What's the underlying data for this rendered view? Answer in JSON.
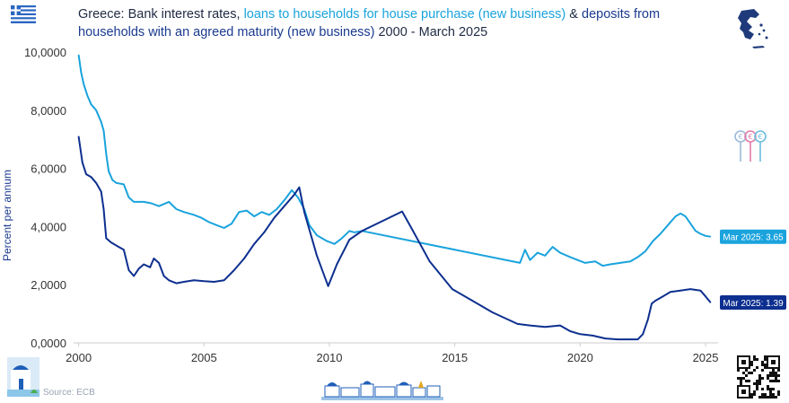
{
  "header": {
    "title_prefix": "Greece: Bank interest rates, ",
    "title_loans": "loans to households for house purchase (new business)",
    "title_amp": " & ",
    "title_deposits": "deposits from households with an agreed maturity (new business)",
    "title_suffix": " 2000 - March 2025"
  },
  "footer": {
    "source": "Source: ECB"
  },
  "icons": {
    "flag": "greek-flag-icon",
    "map": "greece-map-icon",
    "keys": "euro-keys-icon",
    "qr": "qr-code-icon",
    "santorini": "santorini-church-icon",
    "skyline": "cyclades-village-icon"
  },
  "colors": {
    "loans": "#1aa3dd",
    "deposits": "#0d2f8f",
    "axis_text": "#333333",
    "ylabel": "#1a3a8f",
    "grid": "#e6e6e6"
  },
  "chart_data": {
    "type": "line",
    "ylabel": "Percent per annum",
    "xlabel": "",
    "ylim": [
      0,
      10
    ],
    "xlim": [
      1999.8,
      2025.5
    ],
    "x_ticks": [
      2000,
      2005,
      2010,
      2015,
      2020,
      2025
    ],
    "x_tick_labels": [
      "2000",
      "2005",
      "2010",
      "2015",
      "2020",
      "2025"
    ],
    "y_ticks": [
      0,
      2,
      4,
      6,
      8,
      10
    ],
    "y_tick_labels": [
      "0,0000",
      "2,0000",
      "4,0000",
      "6,0000",
      "8,0000",
      "10,0000"
    ],
    "grid": "none",
    "series": [
      {
        "name": "loans to households for house purchase (new business)",
        "end_label": "Mar 2025: 3.65",
        "points": [
          [
            2000.0,
            9.9
          ],
          [
            2000.1,
            9.3
          ],
          [
            2000.2,
            8.9
          ],
          [
            2000.35,
            8.5
          ],
          [
            2000.5,
            8.2
          ],
          [
            2000.7,
            8.0
          ],
          [
            2000.9,
            7.6
          ],
          [
            2001.0,
            7.3
          ],
          [
            2001.1,
            6.5
          ],
          [
            2001.2,
            5.9
          ],
          [
            2001.35,
            5.6
          ],
          [
            2001.5,
            5.5
          ],
          [
            2001.8,
            5.45
          ],
          [
            2002.0,
            5.0
          ],
          [
            2002.2,
            4.85
          ],
          [
            2002.6,
            4.85
          ],
          [
            2002.9,
            4.8
          ],
          [
            2003.2,
            4.7
          ],
          [
            2003.6,
            4.85
          ],
          [
            2003.9,
            4.6
          ],
          [
            2004.2,
            4.5
          ],
          [
            2004.6,
            4.4
          ],
          [
            2004.9,
            4.3
          ],
          [
            2005.2,
            4.15
          ],
          [
            2005.5,
            4.05
          ],
          [
            2005.8,
            3.95
          ],
          [
            2006.1,
            4.1
          ],
          [
            2006.4,
            4.5
          ],
          [
            2006.7,
            4.55
          ],
          [
            2007.0,
            4.35
          ],
          [
            2007.3,
            4.5
          ],
          [
            2007.6,
            4.4
          ],
          [
            2007.9,
            4.6
          ],
          [
            2008.2,
            4.9
          ],
          [
            2008.5,
            5.25
          ],
          [
            2008.75,
            5.0
          ],
          [
            2009.0,
            4.6
          ],
          [
            2009.2,
            4.05
          ],
          [
            2009.5,
            3.7
          ],
          [
            2009.9,
            3.5
          ],
          [
            2010.2,
            3.4
          ],
          [
            2010.5,
            3.6
          ],
          [
            2010.8,
            3.85
          ],
          [
            2011.0,
            3.8
          ],
          [
            2011.3,
            3.85
          ],
          [
            2017.6,
            2.75
          ],
          [
            2017.8,
            3.2
          ],
          [
            2018.0,
            2.85
          ],
          [
            2018.3,
            3.1
          ],
          [
            2018.6,
            3.0
          ],
          [
            2018.9,
            3.3
          ],
          [
            2019.2,
            3.1
          ],
          [
            2019.6,
            2.95
          ],
          [
            2019.9,
            2.85
          ],
          [
            2020.2,
            2.75
          ],
          [
            2020.6,
            2.8
          ],
          [
            2020.9,
            2.65
          ],
          [
            2021.2,
            2.7
          ],
          [
            2021.6,
            2.75
          ],
          [
            2022.0,
            2.8
          ],
          [
            2022.3,
            2.95
          ],
          [
            2022.6,
            3.15
          ],
          [
            2022.9,
            3.5
          ],
          [
            2023.2,
            3.75
          ],
          [
            2023.5,
            4.05
          ],
          [
            2023.8,
            4.35
          ],
          [
            2024.0,
            4.45
          ],
          [
            2024.2,
            4.35
          ],
          [
            2024.4,
            4.1
          ],
          [
            2024.6,
            3.85
          ],
          [
            2024.8,
            3.75
          ],
          [
            2025.0,
            3.68
          ],
          [
            2025.2,
            3.65
          ]
        ]
      },
      {
        "name": "deposits from households with an agreed maturity (new business)",
        "end_label": "Mar 2025: 1.39",
        "points": [
          [
            2000.0,
            7.1
          ],
          [
            2000.15,
            6.2
          ],
          [
            2000.3,
            5.8
          ],
          [
            2000.5,
            5.7
          ],
          [
            2000.7,
            5.5
          ],
          [
            2000.9,
            5.2
          ],
          [
            2001.0,
            4.6
          ],
          [
            2001.1,
            3.6
          ],
          [
            2001.3,
            3.45
          ],
          [
            2001.6,
            3.3
          ],
          [
            2001.8,
            3.2
          ],
          [
            2002.0,
            2.5
          ],
          [
            2002.2,
            2.3
          ],
          [
            2002.4,
            2.55
          ],
          [
            2002.6,
            2.7
          ],
          [
            2002.85,
            2.6
          ],
          [
            2003.0,
            2.9
          ],
          [
            2003.2,
            2.75
          ],
          [
            2003.4,
            2.3
          ],
          [
            2003.6,
            2.15
          ],
          [
            2003.9,
            2.05
          ],
          [
            2004.2,
            2.1
          ],
          [
            2004.6,
            2.15
          ],
          [
            2005.0,
            2.12
          ],
          [
            2005.4,
            2.1
          ],
          [
            2005.8,
            2.15
          ],
          [
            2006.2,
            2.5
          ],
          [
            2006.6,
            2.9
          ],
          [
            2007.0,
            3.4
          ],
          [
            2007.4,
            3.8
          ],
          [
            2007.8,
            4.3
          ],
          [
            2008.2,
            4.7
          ],
          [
            2008.6,
            5.1
          ],
          [
            2008.8,
            5.35
          ],
          [
            2009.0,
            4.5
          ],
          [
            2009.5,
            3.0
          ],
          [
            2009.95,
            1.95
          ],
          [
            2010.3,
            2.7
          ],
          [
            2010.8,
            3.55
          ],
          [
            2011.3,
            3.85
          ],
          [
            2012.9,
            4.52
          ],
          [
            2013.3,
            3.9
          ],
          [
            2014.0,
            2.8
          ],
          [
            2014.9,
            1.85
          ],
          [
            2015.6,
            1.5
          ],
          [
            2016.5,
            1.05
          ],
          [
            2017.5,
            0.65
          ],
          [
            2018.0,
            0.6
          ],
          [
            2018.6,
            0.55
          ],
          [
            2019.2,
            0.6
          ],
          [
            2019.6,
            0.4
          ],
          [
            2020.0,
            0.3
          ],
          [
            2020.5,
            0.25
          ],
          [
            2021.0,
            0.15
          ],
          [
            2021.5,
            0.12
          ],
          [
            2022.0,
            0.12
          ],
          [
            2022.3,
            0.12
          ],
          [
            2022.5,
            0.3
          ],
          [
            2022.7,
            0.8
          ],
          [
            2022.85,
            1.35
          ],
          [
            2023.0,
            1.45
          ],
          [
            2023.3,
            1.6
          ],
          [
            2023.6,
            1.75
          ],
          [
            2024.0,
            1.8
          ],
          [
            2024.4,
            1.85
          ],
          [
            2024.8,
            1.8
          ],
          [
            2025.0,
            1.6
          ],
          [
            2025.2,
            1.39
          ]
        ]
      }
    ]
  }
}
